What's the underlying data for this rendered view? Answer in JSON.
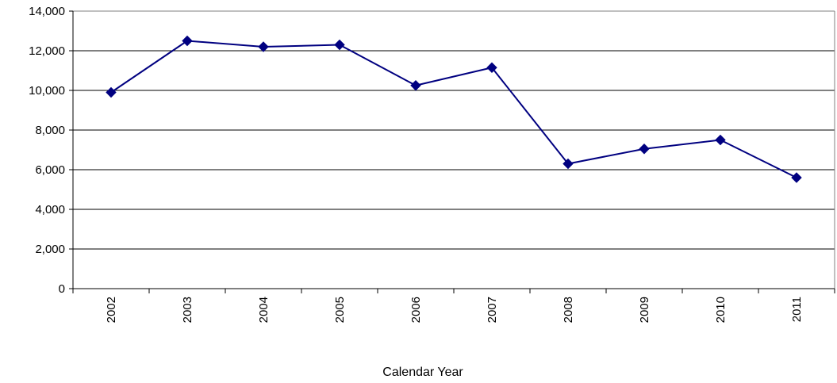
{
  "chart_data": {
    "type": "line",
    "title": "",
    "xlabel": "Calendar Year",
    "ylabel": "",
    "categories": [
      "2002",
      "2003",
      "2004",
      "2005",
      "2006",
      "2007",
      "2008",
      "2009",
      "2010",
      "2011"
    ],
    "series": [
      {
        "values": [
          9900,
          12500,
          12200,
          12300,
          10250,
          11150,
          6300,
          7050,
          7500,
          5600
        ],
        "color": "#000080",
        "marker": "diamond"
      }
    ],
    "ylim": [
      0,
      14000
    ],
    "yticks": [
      0,
      2000,
      4000,
      6000,
      8000,
      10000,
      12000,
      14000
    ],
    "ytick_labels": [
      "0",
      "2,000",
      "4,000",
      "6,000",
      "8,000",
      "10,000",
      "12,000",
      "14,000"
    ],
    "grid": true,
    "legend": "none"
  }
}
